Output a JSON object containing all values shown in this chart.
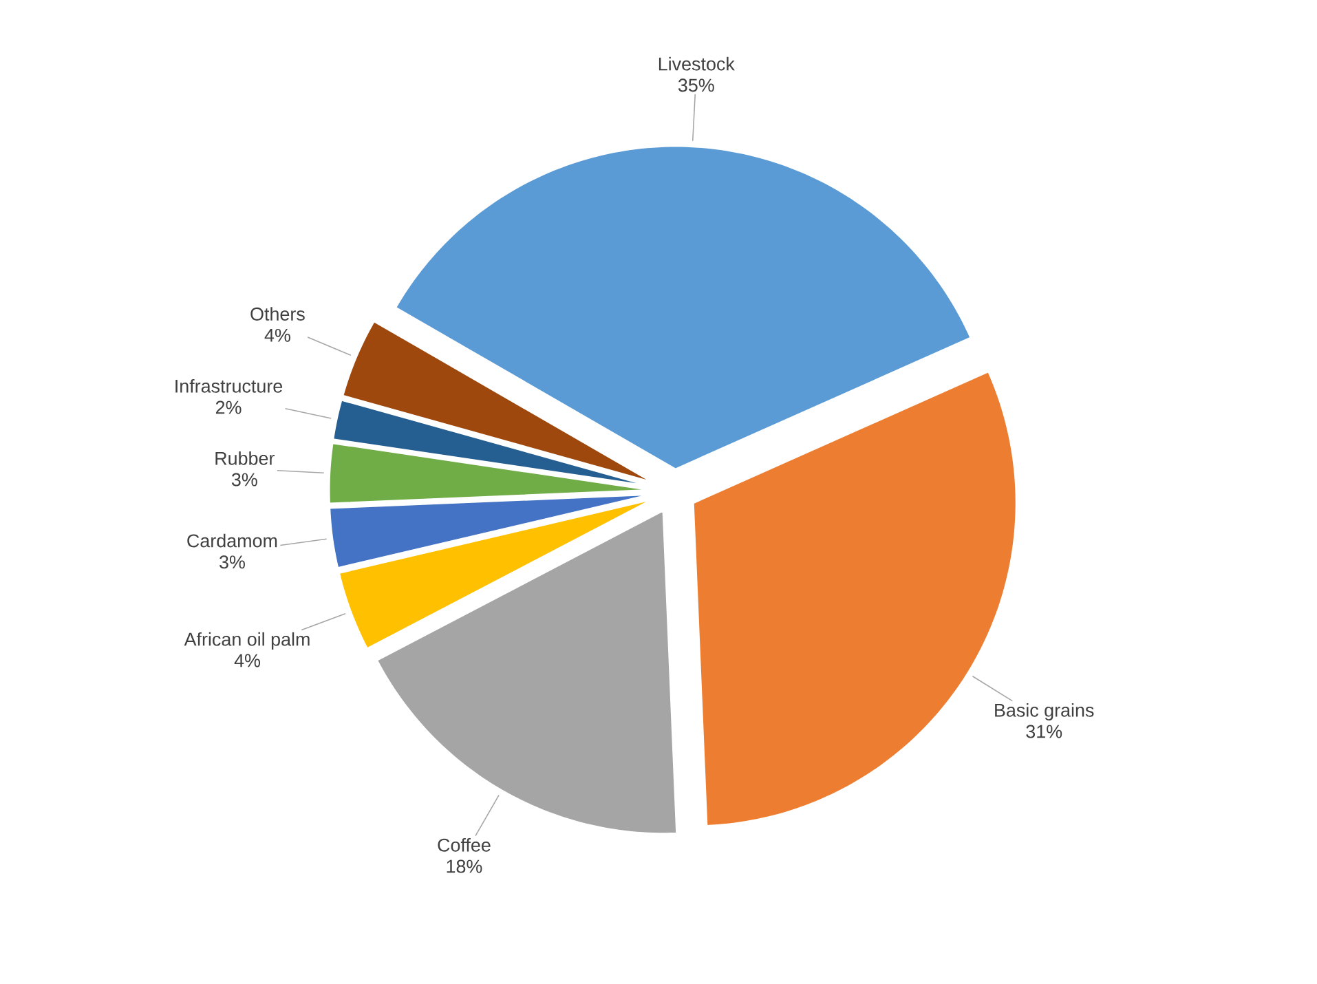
{
  "chart_data": {
    "type": "pie",
    "categories": [
      "Livestock",
      "Basic grains",
      "Coffee",
      "African oil palm",
      "Cardamom",
      "Rubber",
      "Infrastructure",
      "Others"
    ],
    "values": [
      35,
      31,
      18,
      4,
      3,
      3,
      2,
      4
    ],
    "value_labels": [
      "35%",
      "31%",
      "18%",
      "4%",
      "3%",
      "3%",
      "2%",
      "4%"
    ],
    "colors": [
      "#5b9bd5",
      "#ed7d31",
      "#a5a5a5",
      "#ffc000",
      "#4472c4",
      "#70ad47",
      "#255e91",
      "#9e480e"
    ]
  }
}
